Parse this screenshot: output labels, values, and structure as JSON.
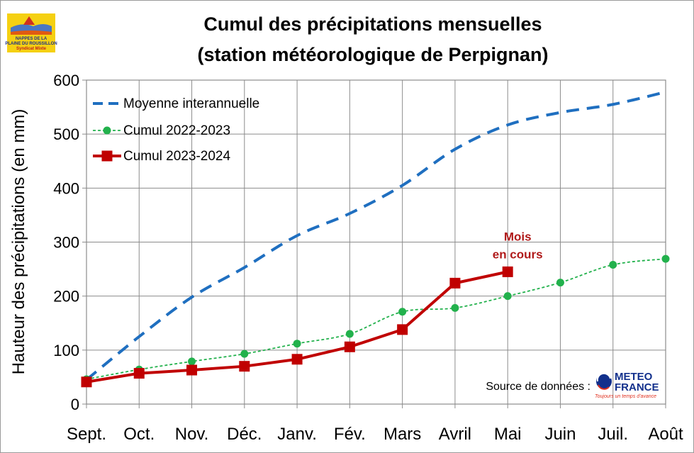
{
  "chart_data": {
    "type": "line",
    "title": [
      "Cumul des précipitations mensuelles",
      "(station météorologique de Perpignan)"
    ],
    "ylabel": "Hauteur des précipitations (en mm)",
    "xlabel": "",
    "categories": [
      "Sept.",
      "Oct.",
      "Nov.",
      "Déc.",
      "Janv.",
      "Fév.",
      "Mars",
      "Avril",
      "Mai",
      "Juin",
      "Juil.",
      "Août"
    ],
    "ylim": [
      0,
      600
    ],
    "yticks": [
      0,
      100,
      200,
      300,
      400,
      500,
      600
    ],
    "grid": true,
    "legend_position": "top-left",
    "series": [
      {
        "name": "Moyenne interannuelle",
        "style": "dashed",
        "color": "#1f6fc0",
        "values": [
          45,
          125,
          198,
          253,
          312,
          353,
          405,
          472,
          517,
          540,
          555,
          578
        ]
      },
      {
        "name": "Cumul 2022-2023",
        "style": "dotted-circle",
        "color": "#22b14c",
        "values": [
          46,
          64,
          79,
          93,
          112,
          130,
          171,
          178,
          200,
          225,
          258,
          269
        ]
      },
      {
        "name": "Cumul 2023-2024",
        "style": "solid-square",
        "color": "#c00000",
        "values": [
          41,
          57,
          63,
          70,
          83,
          106,
          138,
          224,
          245,
          null,
          null,
          null
        ]
      }
    ],
    "annotations": [
      {
        "text": [
          "Mois",
          "en cours"
        ],
        "category": "Mai",
        "value": 245
      }
    ]
  },
  "source": {
    "label": "Source de données :",
    "logo": {
      "line1": "METEO",
      "line2": "FRANCE",
      "tagline": "Toujours un temps d'avance"
    }
  },
  "badge": {
    "lines": [
      "NAPPES DE LA",
      "PLAINE DU ROUSSILLON",
      "Syndicat Mixte"
    ],
    "color": "#f5d012"
  }
}
